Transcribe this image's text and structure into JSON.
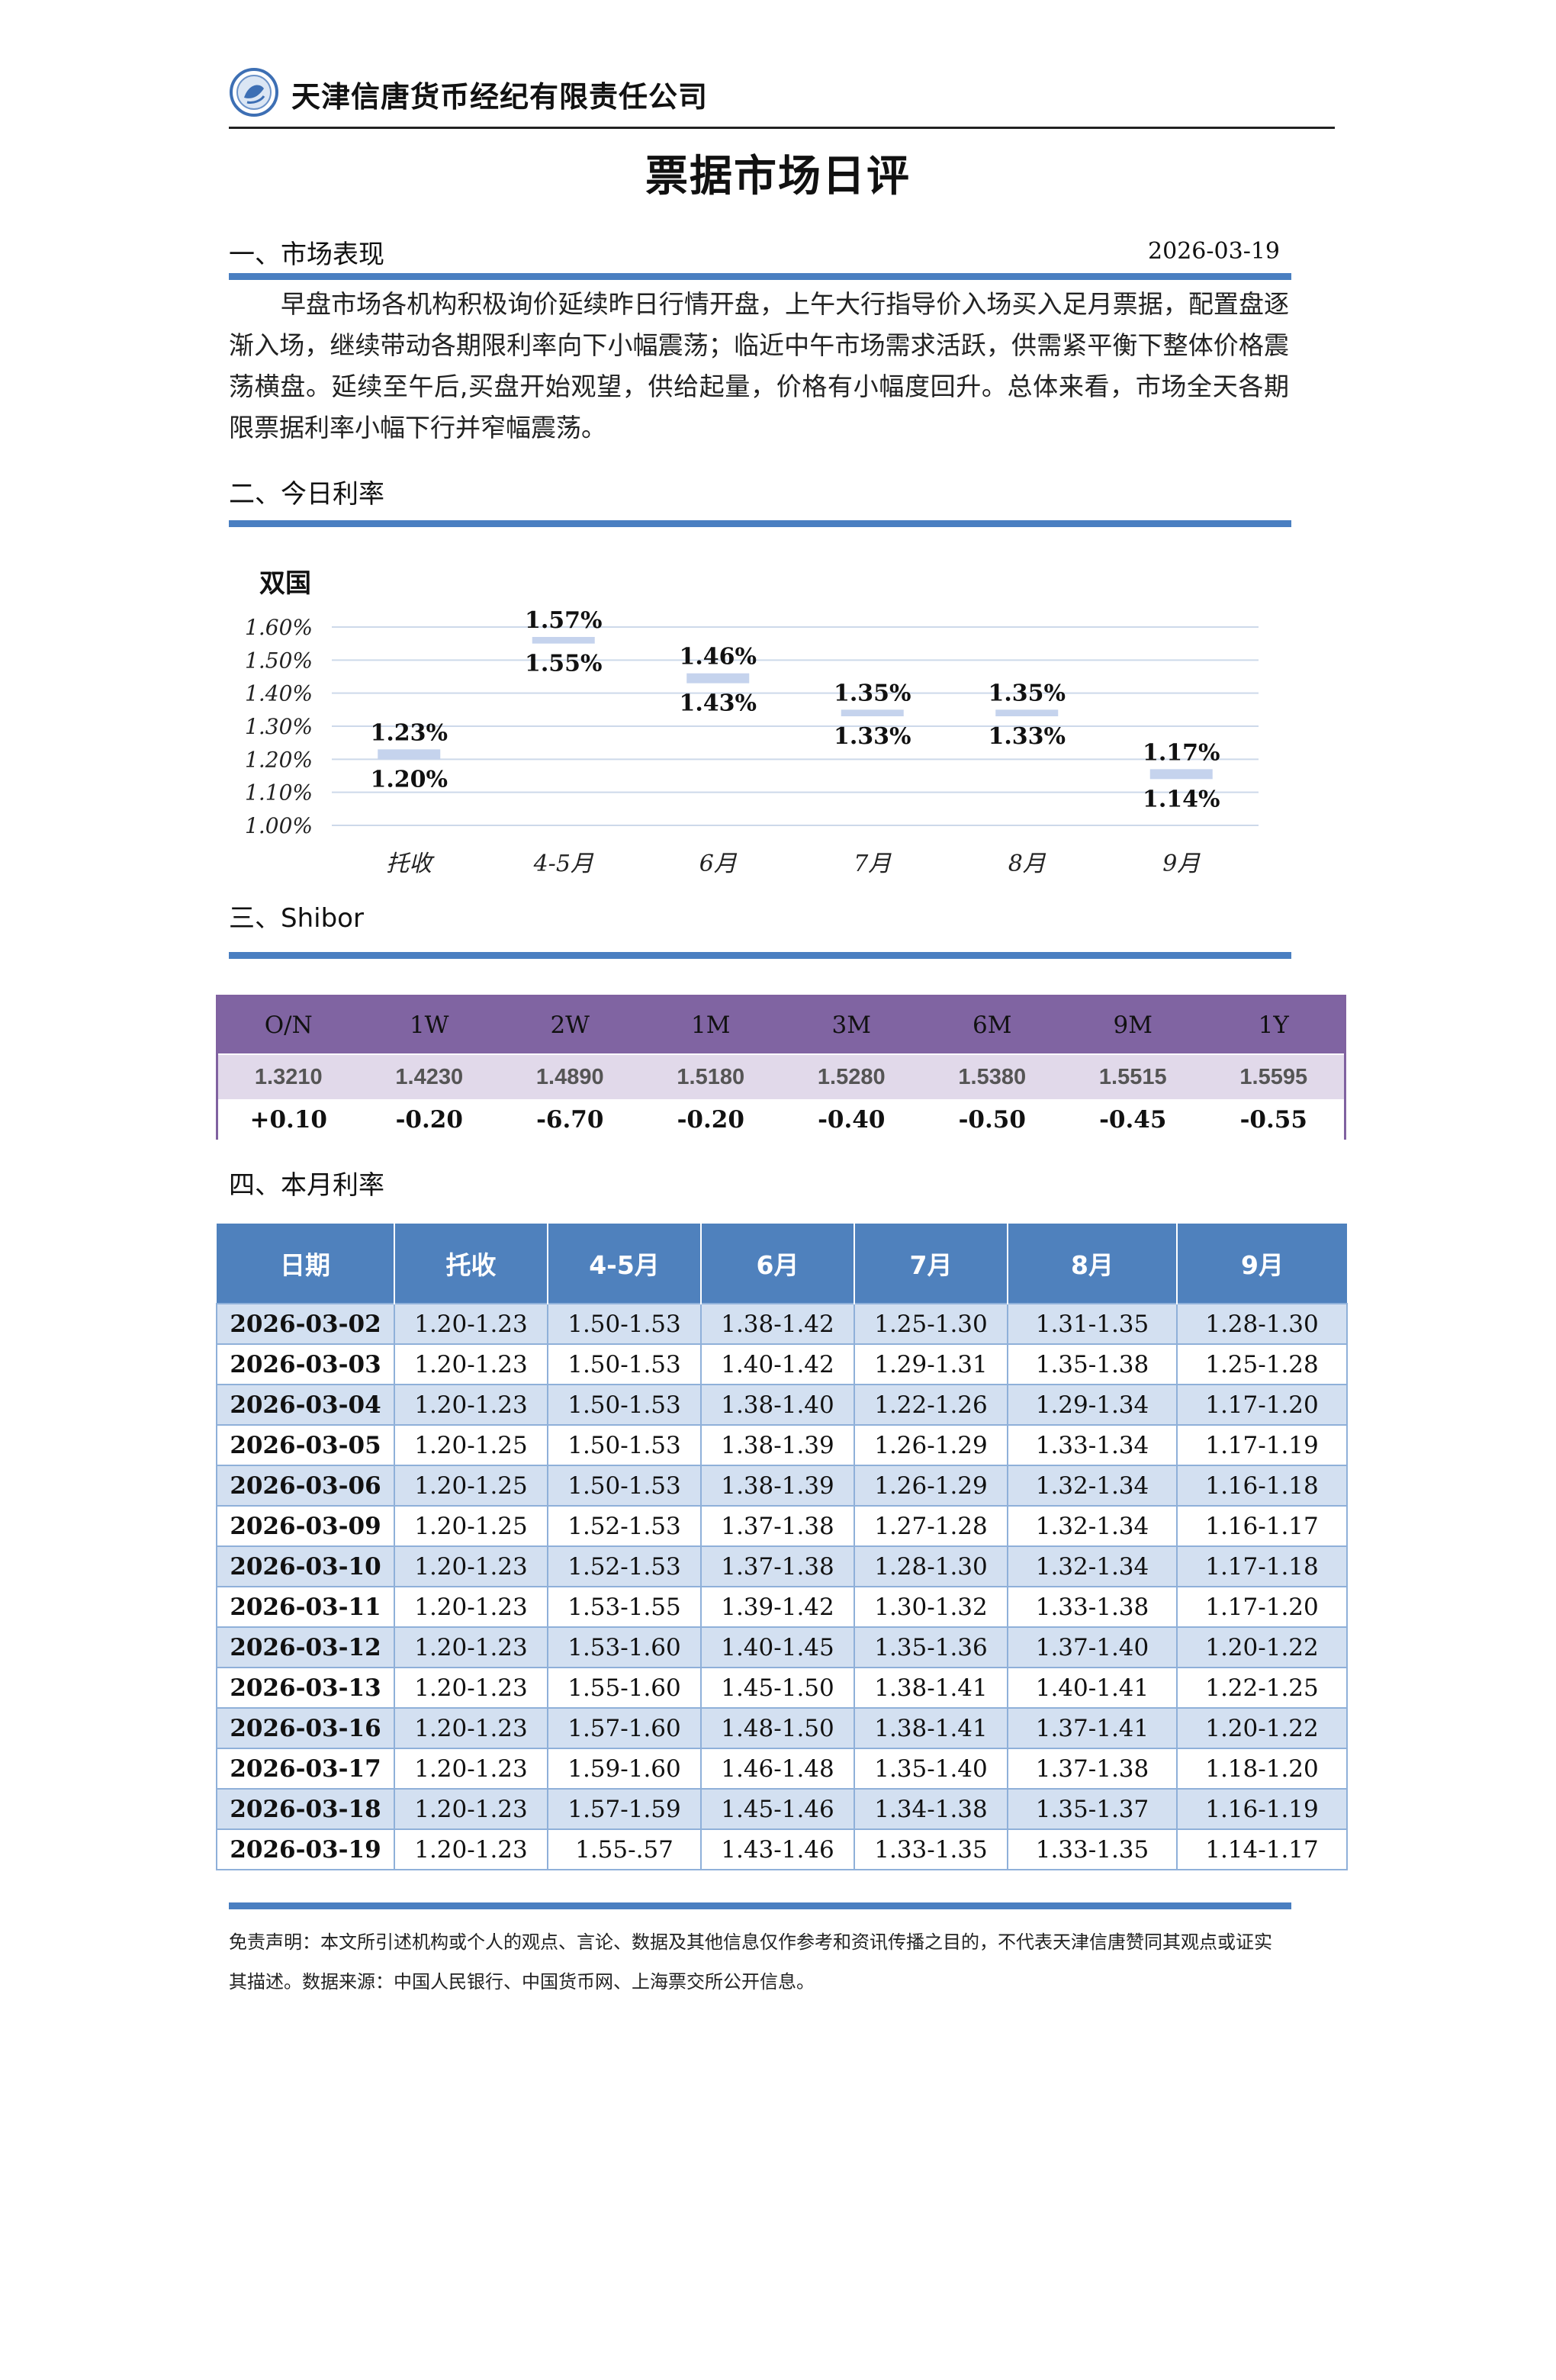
{
  "header": {
    "company": "天津信唐货币经纪有限责任公司",
    "logo_icon": "company-logo-icon"
  },
  "title": "票据市场日评",
  "section1": {
    "title": "一、市场表现",
    "date": "2026-03-19",
    "text": "早盘市场各机构积极询价延续昨日行情开盘，上午大行指导价入场买入足月票据，配置盘逐渐入场，继续带动各期限利率向下小幅震荡；临近中午市场需求活跃，供需紧平衡下整体价格震荡横盘。延续至午后,买盘开始观望，供给起量，价格有小幅度回升。总体来看，市场全天各期限票据利率小幅下行并窄幅震荡。"
  },
  "section2": {
    "title": "二、今日利率"
  },
  "chart_data": {
    "type": "bar",
    "title": "双国",
    "categories": [
      "托收",
      "4-5月",
      "6月",
      "7月",
      "8月",
      "9月"
    ],
    "series": [
      {
        "values": [
          1.2,
          1.55,
          1.43,
          1.33,
          1.33,
          1.14
        ]
      },
      {
        "values": [
          1.23,
          1.57,
          1.46,
          1.35,
          1.35,
          1.17
        ]
      }
    ],
    "high_labels": [
      "1.23%",
      "1.57%",
      "1.46%",
      "1.35%",
      "1.35%",
      "1.17%"
    ],
    "low_labels": [
      "1.20%",
      "1.55%",
      "1.43%",
      "1.33%",
      "1.33%",
      "1.14%"
    ],
    "y_ticks": [
      1.0,
      1.1,
      1.2,
      1.3,
      1.4,
      1.5,
      1.6
    ],
    "y_tick_labels": [
      "1.00%",
      "1.10%",
      "1.20%",
      "1.30%",
      "1.40%",
      "1.50%",
      "1.60%"
    ],
    "ylim": [
      1.0,
      1.6
    ],
    "grid": true,
    "bar_color": "#c5d3ed"
  },
  "section3": {
    "title": "三、Shibor",
    "headers": [
      "O/N",
      "1W",
      "2W",
      "1M",
      "3M",
      "6M",
      "9M",
      "1Y"
    ],
    "values": [
      "1.3210",
      "1.4230",
      "1.4890",
      "1.5180",
      "1.5280",
      "1.5380",
      "1.5515",
      "1.5595"
    ],
    "changes": [
      "+0.10",
      "-0.20",
      "-6.70",
      "-0.20",
      "-0.40",
      "-0.50",
      "-0.45",
      "-0.55"
    ]
  },
  "section4": {
    "title": "四、本月利率",
    "headers": [
      "日期",
      "托收",
      "4-5月",
      "6月",
      "7月",
      "8月",
      "9月"
    ],
    "rows": [
      [
        "2026-03-02",
        "1.20-1.23",
        "1.50-1.53",
        "1.38-1.42",
        "1.25-1.30",
        "1.31-1.35",
        "1.28-1.30"
      ],
      [
        "2026-03-03",
        "1.20-1.23",
        "1.50-1.53",
        "1.40-1.42",
        "1.29-1.31",
        "1.35-1.38",
        "1.25-1.28"
      ],
      [
        "2026-03-04",
        "1.20-1.23",
        "1.50-1.53",
        "1.38-1.40",
        "1.22-1.26",
        "1.29-1.34",
        "1.17-1.20"
      ],
      [
        "2026-03-05",
        "1.20-1.25",
        "1.50-1.53",
        "1.38-1.39",
        "1.26-1.29",
        "1.33-1.34",
        "1.17-1.19"
      ],
      [
        "2026-03-06",
        "1.20-1.25",
        "1.50-1.53",
        "1.38-1.39",
        "1.26-1.29",
        "1.32-1.34",
        "1.16-1.18"
      ],
      [
        "2026-03-09",
        "1.20-1.25",
        "1.52-1.53",
        "1.37-1.38",
        "1.27-1.28",
        "1.32-1.34",
        "1.16-1.17"
      ],
      [
        "2026-03-10",
        "1.20-1.23",
        "1.52-1.53",
        "1.37-1.38",
        "1.28-1.30",
        "1.32-1.34",
        "1.17-1.18"
      ],
      [
        "2026-03-11",
        "1.20-1.23",
        "1.53-1.55",
        "1.39-1.42",
        "1.30-1.32",
        "1.33-1.38",
        "1.17-1.20"
      ],
      [
        "2026-03-12",
        "1.20-1.23",
        "1.53-1.60",
        "1.40-1.45",
        "1.35-1.36",
        "1.37-1.40",
        "1.20-1.22"
      ],
      [
        "2026-03-13",
        "1.20-1.23",
        "1.55-1.60",
        "1.45-1.50",
        "1.38-1.41",
        "1.40-1.41",
        "1.22-1.25"
      ],
      [
        "2026-03-16",
        "1.20-1.23",
        "1.57-1.60",
        "1.48-1.50",
        "1.38-1.41",
        "1.37-1.41",
        "1.20-1.22"
      ],
      [
        "2026-03-17",
        "1.20-1.23",
        "1.59-1.60",
        "1.46-1.48",
        "1.35-1.40",
        "1.37-1.38",
        "1.18-1.20"
      ],
      [
        "2026-03-18",
        "1.20-1.23",
        "1.57-1.59",
        "1.45-1.46",
        "1.34-1.38",
        "1.35-1.37",
        "1.16-1.19"
      ],
      [
        "2026-03-19",
        "1.20-1.23",
        "1.55-.57",
        "1.43-1.46",
        "1.33-1.35",
        "1.33-1.35",
        "1.14-1.17"
      ]
    ]
  },
  "disclaimer": "免责声明：本文所引述机构或个人的观点、言论、数据及其他信息仅作参考和资讯传播之目的，不代表天津信唐赞同其观点或证实其描述。数据来源：中国人民银行、中国货币网、上海票交所公开信息。"
}
